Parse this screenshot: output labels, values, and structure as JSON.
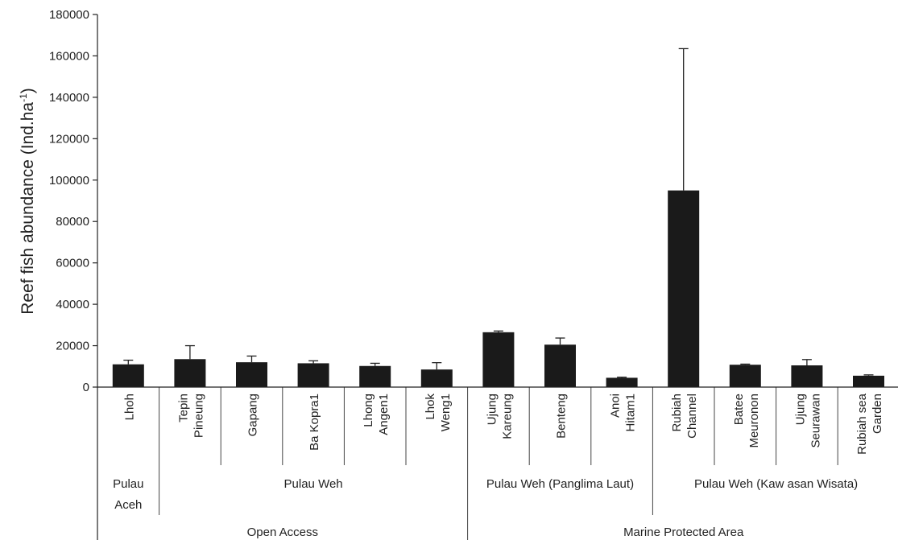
{
  "chart_data": {
    "type": "bar",
    "ylabel_main": "Reef fish abundance (Ind.ha",
    "ylabel_sup": "-1",
    "ylabel_end": ")",
    "xlabel": "",
    "ylim": [
      0,
      180000
    ],
    "yticks": [
      "0",
      "20000",
      "40000",
      "60000",
      "80000",
      "100000",
      "120000",
      "140000",
      "160000",
      "180000"
    ],
    "bar_color": "#1a1a1a",
    "categories": [
      [
        "Lhoh"
      ],
      [
        "Tepin",
        "Pineung"
      ],
      [
        "Gapang"
      ],
      [
        "Ba Kopra1"
      ],
      [
        "Lhong",
        "Angen1"
      ],
      [
        "Lhok",
        "Weng1"
      ],
      [
        "Ujung",
        "Kareung"
      ],
      [
        "Benteng"
      ],
      [
        "Anoi",
        "Hitam1"
      ],
      [
        "Rubiah",
        "Channel"
      ],
      [
        "Batee",
        "Meuronon"
      ],
      [
        "Ujung",
        "Seurawan"
      ],
      [
        "Rubiah sea",
        "Garden"
      ]
    ],
    "values": [
      11000,
      13500,
      12000,
      11500,
      10200,
      8500,
      26500,
      20500,
      4500,
      95000,
      10800,
      10500,
      5500
    ],
    "errors": [
      2000,
      6500,
      3000,
      1200,
      1300,
      3300,
      600,
      3200,
      300,
      68500,
      300,
      2800,
      400
    ],
    "group_level1": [
      {
        "lines": [
          "Pulau",
          "Aceh"
        ],
        "start": 0,
        "end": 0
      },
      {
        "lines": [
          "Pulau Weh"
        ],
        "start": 1,
        "end": 5
      },
      {
        "lines": [
          "Pulau Weh (Panglima Laut)"
        ],
        "start": 6,
        "end": 8
      },
      {
        "lines": [
          "Pulau Weh (Kaw asan Wisata)"
        ],
        "start": 9,
        "end": 12
      }
    ],
    "group_level2": [
      {
        "lines": [
          "Open Access"
        ],
        "start": 0,
        "end": 5
      },
      {
        "lines": [
          "Marine Protected Area"
        ],
        "start": 6,
        "end": 12
      }
    ]
  }
}
